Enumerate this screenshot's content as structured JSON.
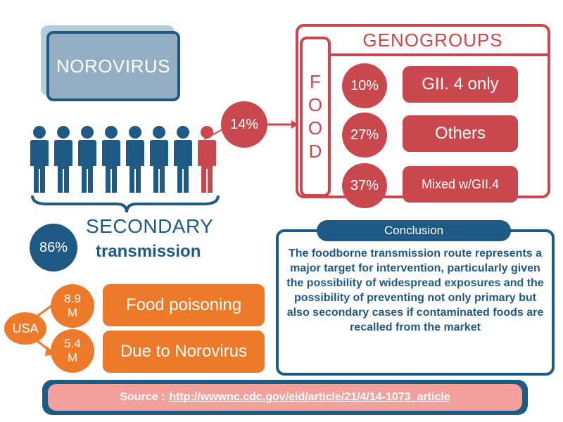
{
  "title": "NOROVIRUS",
  "food_share": "14%",
  "genogroups": {
    "title": "GENOGROUPS",
    "food_letters": [
      "F",
      "O",
      "O",
      "D"
    ],
    "rows": [
      {
        "pct": "10%",
        "label": "GII. 4 only"
      },
      {
        "pct": "27%",
        "label": "Others"
      },
      {
        "pct": "37%",
        "label": "Mixed w/GII.4"
      }
    ]
  },
  "secondary": {
    "pct": "86%",
    "line1": "SECONDARY",
    "line2": "transmission"
  },
  "conclusion": {
    "heading": "Conclusion",
    "text": "The foodborne transmission route represents a major target for intervention, particularly given the possibility of widespread exposures and the possibility of preventing not only primary but also secondary cases if contaminated foods are recalled from the market"
  },
  "usa": {
    "label": "USA",
    "rows": [
      {
        "count_line1": "8.9",
        "count_line2": "M",
        "label": "Food poisoning"
      },
      {
        "count_line1": "5.4",
        "count_line2": "M",
        "label": "Due to Norovirus"
      }
    ]
  },
  "source": {
    "label": "Source :",
    "url": "http://wwwnc.cdc.gov/eid/article/21/4/14-1073_article"
  },
  "colors": {
    "blue": "#1f5a84",
    "red": "#c9484e",
    "orange": "#ec7a2a",
    "light_blue": "#94afc3",
    "pink": "#f2a19c"
  }
}
